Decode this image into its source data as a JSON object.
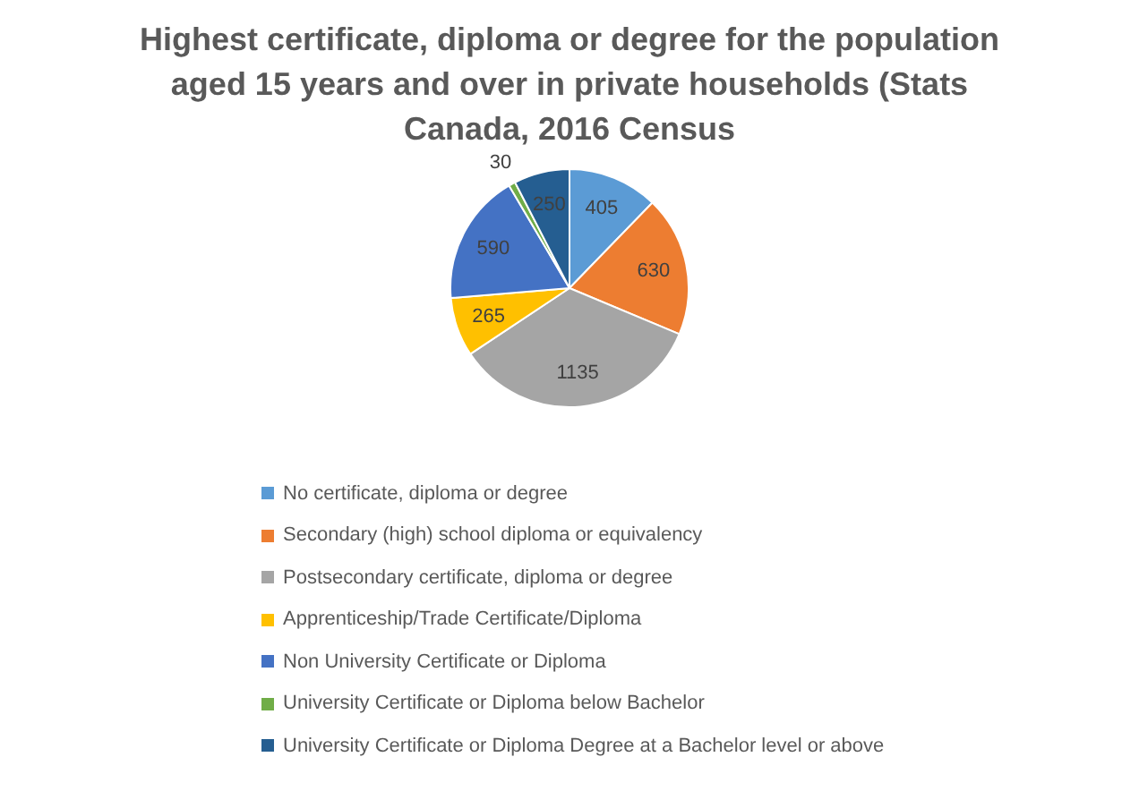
{
  "chart_data": {
    "type": "pie",
    "title": "Highest certificate, diploma or degree for the population aged 15 years and over in private households (Stats Canada, 2016 Census",
    "categories": [
      "No certificate, diploma or degree",
      "Secondary (high) school diploma or equivalency",
      "Postsecondary certificate, diploma or degree",
      "Apprenticeship/Trade Certificate/Diploma",
      "Non University Certificate or Diploma",
      "University Certificate or Diploma below Bachelor",
      "University Certificate or Diploma Degree at a Bachelor level or above"
    ],
    "values": [
      405,
      630,
      1135,
      265,
      590,
      30,
      250
    ],
    "colors": [
      "#5b9bd5",
      "#ed7d31",
      "#a5a5a5",
      "#ffc000",
      "#4472c4",
      "#70ad47",
      "#255e91"
    ],
    "data_labels": true,
    "legend": "bottom"
  }
}
